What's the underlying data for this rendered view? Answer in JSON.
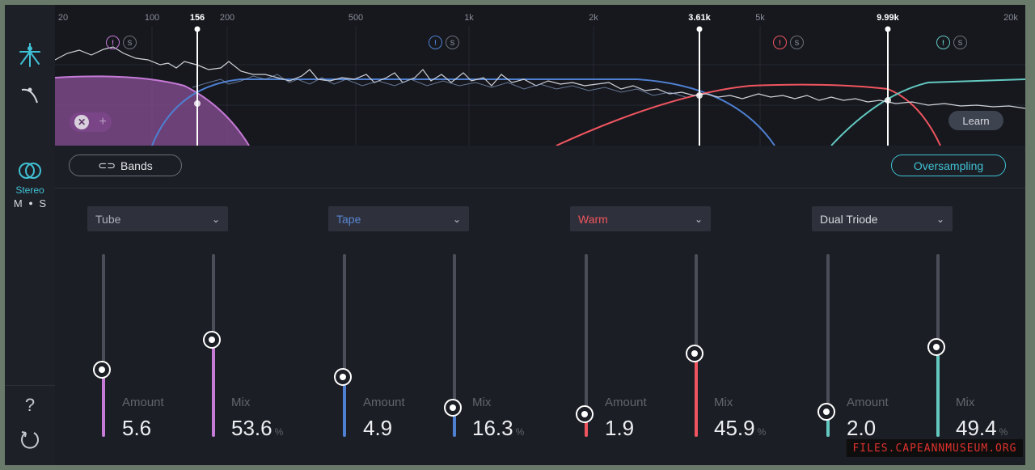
{
  "sidebar": {
    "stereo_label": "Stereo",
    "mid_label": "M",
    "side_label": "S",
    "help_label": "?",
    "icons": [
      "multiband-icon",
      "curve-icon",
      "stereo-icon",
      "help-icon",
      "reset-icon"
    ]
  },
  "spectrum": {
    "ticks": [
      {
        "label": "20",
        "pos": 0.008
      },
      {
        "label": "100",
        "pos": 0.1
      },
      {
        "label": "200",
        "pos": 0.178
      },
      {
        "label": "500",
        "pos": 0.31
      },
      {
        "label": "1k",
        "pos": 0.427
      },
      {
        "label": "2k",
        "pos": 0.555
      },
      {
        "label": "5k",
        "pos": 0.727
      },
      {
        "label": "20k",
        "pos": 0.993
      }
    ],
    "crossovers": [
      "156",
      "3.61k",
      "9.99k"
    ],
    "learn_label": "Learn"
  },
  "toolbar": {
    "bands_label": "Bands",
    "oversampling_label": "Oversampling"
  },
  "bands": [
    {
      "mode": "Tube",
      "color": "#c57ad6",
      "amount_label": "Amount",
      "amount": "5.6",
      "amount_level": 0.37,
      "mix_label": "Mix",
      "mix": "53.6",
      "mix_unit": "%",
      "mix_level": 0.536
    },
    {
      "mode": "Tape",
      "color": "#4e7fd0",
      "amount_label": "Amount",
      "amount": "4.9",
      "amount_level": 0.33,
      "mix_label": "Mix",
      "mix": "16.3",
      "mix_unit": "%",
      "mix_level": 0.163
    },
    {
      "mode": "Warm",
      "color": "#f0555f",
      "amount_label": "Amount",
      "amount": "1.9",
      "amount_level": 0.13,
      "mix_label": "Mix",
      "mix": "45.9",
      "mix_unit": "%",
      "mix_level": 0.459
    },
    {
      "mode": "Dual Triode",
      "color": "#63c8c0",
      "amount_label": "Amount",
      "amount": "2.0",
      "amount_level": 0.14,
      "mix_label": "Mix",
      "mix": "49.4",
      "mix_unit": "%",
      "mix_level": 0.494
    }
  ],
  "watermark": "FILES.CAPEANNMUSEUM.ORG"
}
